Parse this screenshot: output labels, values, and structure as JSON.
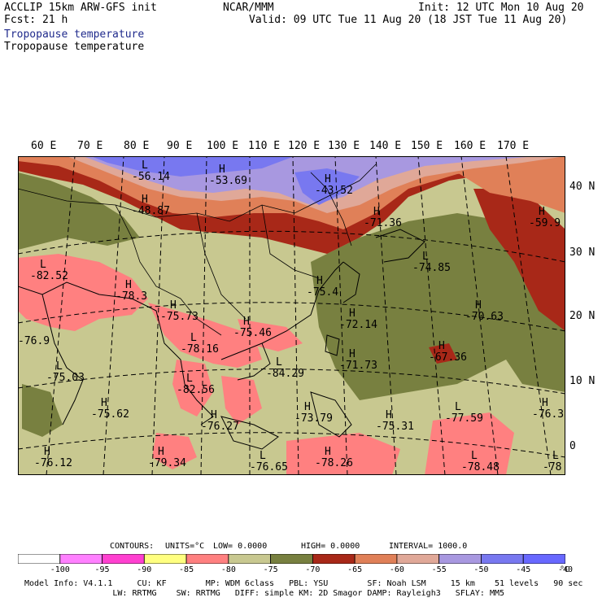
{
  "header": {
    "title_left": "ACCLIP 15km ARW-GFS init",
    "fcst": "Fcst:   21 h",
    "center": "NCAR/MMM",
    "init": "Init: 12 UTC Mon 10 Aug 20",
    "valid": "Valid: 09 UTC Tue 11 Aug 20 (18 JST Tue 11 Aug 20)",
    "field1": "Tropopause temperature",
    "field2": "Tropopause temperature"
  },
  "axes": {
    "lon_labels": [
      "60 E",
      "70 E",
      "80 E",
      "90 E",
      "100 E",
      "110 E",
      "120 E",
      "130 E",
      "140 E",
      "150 E",
      "160 E",
      "170 E"
    ],
    "lat_labels": [
      "40 N",
      "30 N",
      "20 N",
      "10 N",
      "0"
    ]
  },
  "markers": [
    {
      "type": "L",
      "value": "-56.14"
    },
    {
      "type": "H",
      "value": "-53.69"
    },
    {
      "type": "H",
      "value": "-43.52"
    },
    {
      "type": "H",
      "value": "-48.87"
    },
    {
      "type": "H",
      "value": "-71.36"
    },
    {
      "type": "H",
      "value": "-59.9"
    },
    {
      "type": "L",
      "value": "-82.52"
    },
    {
      "type": "H",
      "value": "-78.3"
    },
    {
      "type": "H",
      "value": "-75.73"
    },
    {
      "type": "L",
      "value": "-74.85"
    },
    {
      "type": "H",
      "value": "-75.4"
    },
    {
      "type": "H",
      "value": "-70.63"
    },
    {
      "type": "H",
      "value": "-72.14"
    },
    {
      "type": "",
      "value": "-76.9"
    },
    {
      "type": "H",
      "value": "-75.46"
    },
    {
      "type": "L",
      "value": "-78.16"
    },
    {
      "type": "H",
      "value": "-67.36"
    },
    {
      "type": "H",
      "value": "-71.73"
    },
    {
      "type": "L",
      "value": "-75.03"
    },
    {
      "type": "L",
      "value": "-84.29"
    },
    {
      "type": "L",
      "value": "-82.56"
    },
    {
      "type": "H",
      "value": "-75.62"
    },
    {
      "type": "H",
      "value": "-76.27"
    },
    {
      "type": "H",
      "value": "-73.79"
    },
    {
      "type": "H",
      "value": "-75.31"
    },
    {
      "type": "L",
      "value": "-77.59"
    },
    {
      "type": "H",
      "value": "-76.3"
    },
    {
      "type": "H",
      "value": "-76.12"
    },
    {
      "type": "H",
      "value": "-79.34"
    },
    {
      "type": "L",
      "value": "-76.65"
    },
    {
      "type": "H",
      "value": "-78.26"
    },
    {
      "type": "L",
      "value": "-78.48"
    },
    {
      "type": "L",
      "value": "-78"
    }
  ],
  "contours_line": {
    "contours": "CONTOURS:",
    "units": "UNITS=°C",
    "low": "LOW=  0.0000",
    "high": "HIGH=  0.0000",
    "interval": "INTERVAL=   1000.0"
  },
  "legend": {
    "labels": [
      "-100",
      "-95",
      "-90",
      "-85",
      "-80",
      "-75",
      "-70",
      "-65",
      "-60",
      "-55",
      "-50",
      "-45",
      "-40"
    ],
    "unit": "°C",
    "colors": [
      "#ffffff",
      "#ff80ff",
      "#ff40d0",
      "#ffff80",
      "#ff8080",
      "#c8c890",
      "#788040",
      "#a82818",
      "#e08058",
      "#e0a898",
      "#a898e0",
      "#7878f0",
      "#6868ff"
    ]
  },
  "footer": {
    "line1": "Model Info: V4.1.1     CU: KF        MP: WDM 6class   PBL: YSU        SF: Noah LSM     15 km    51 levels   90 sec",
    "line2": "                  LW: RRTMG    SW: RRTMG   DIFF: simple KM: 2D Smagor DAMP: Rayleigh3   SFLAY: MM5"
  }
}
